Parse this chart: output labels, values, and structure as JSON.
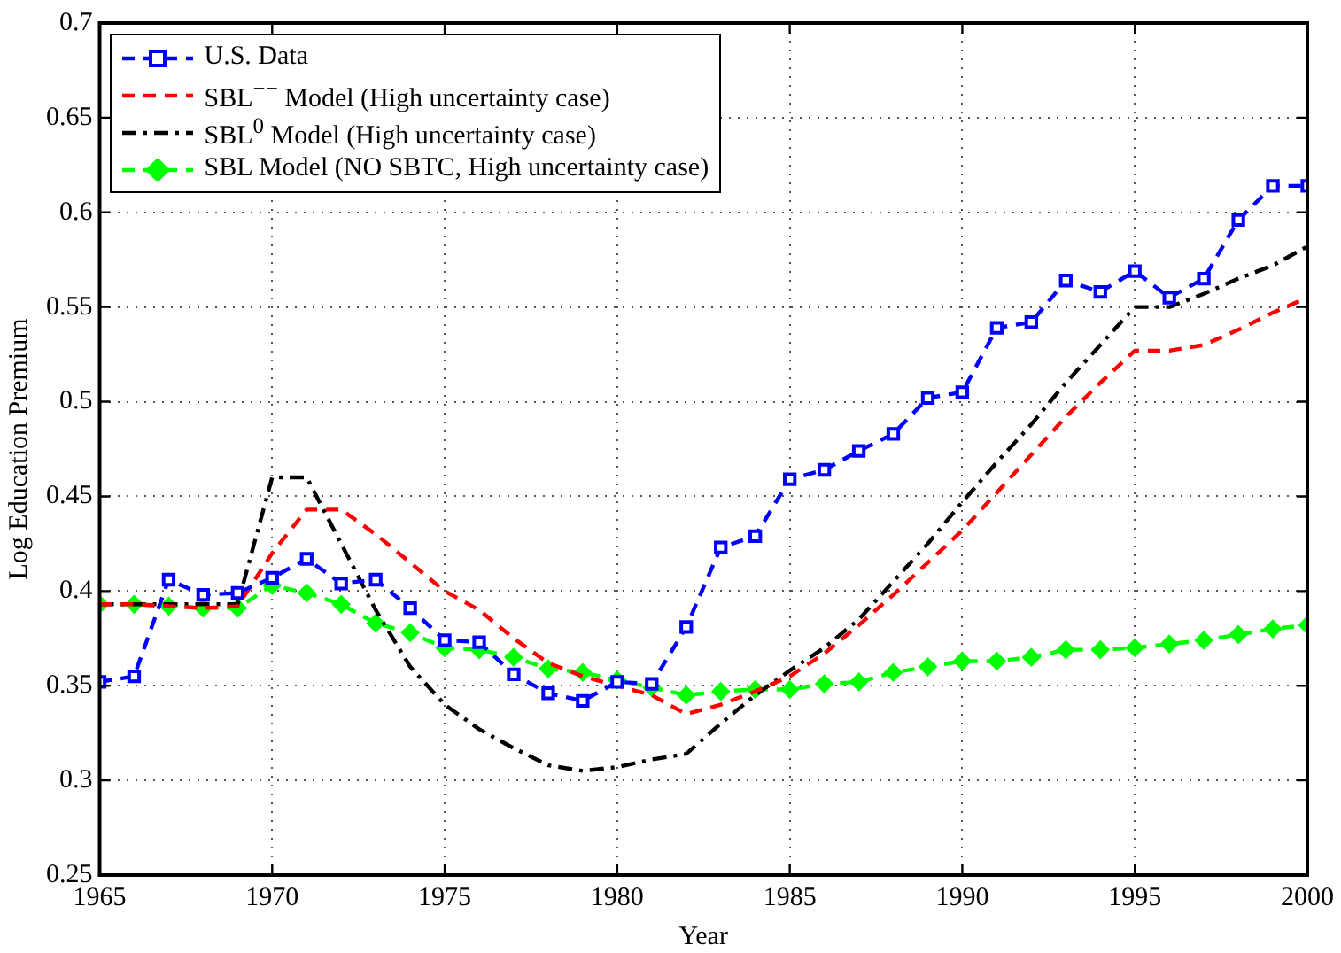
{
  "chart_data": {
    "type": "line",
    "xlabel": "Year",
    "ylabel": "Log Education Premium",
    "x": [
      1965,
      1966,
      1967,
      1968,
      1969,
      1970,
      1971,
      1972,
      1973,
      1974,
      1975,
      1976,
      1977,
      1978,
      1979,
      1980,
      1981,
      1982,
      1983,
      1984,
      1985,
      1986,
      1987,
      1988,
      1989,
      1990,
      1991,
      1992,
      1993,
      1994,
      1995,
      1996,
      1997,
      1998,
      1999,
      2000
    ],
    "xlim": [
      1965,
      2000
    ],
    "xticks": [
      1965,
      1970,
      1975,
      1980,
      1985,
      1990,
      1995,
      2000
    ],
    "ylim": [
      0.25,
      0.7
    ],
    "yticks": [
      0.25,
      0.3,
      0.35,
      0.4,
      0.45,
      0.5,
      0.55,
      0.6,
      0.65,
      0.7
    ],
    "grid": true,
    "legend": "top left",
    "series": [
      {
        "name": "U.S. Data",
        "color": "#0000ff",
        "marker": "square",
        "line_style": "dashed",
        "values": [
          0.352,
          0.355,
          0.406,
          0.398,
          0.399,
          0.407,
          0.417,
          0.404,
          0.406,
          0.391,
          0.374,
          0.373,
          0.356,
          0.346,
          0.342,
          0.352,
          0.351,
          0.381,
          0.423,
          0.429,
          0.459,
          0.464,
          0.474,
          0.483,
          0.502,
          0.505,
          0.539,
          0.542,
          0.564,
          0.558,
          0.569,
          0.555,
          0.565,
          0.596,
          0.614,
          0.614
        ]
      },
      {
        "name": "SBL$^{−−}$ Model (High uncertainty case)",
        "color": "#ff0000",
        "marker": "none",
        "line_style": "dashed",
        "values": [
          0.393,
          0.393,
          0.392,
          0.391,
          0.392,
          0.42,
          0.443,
          0.443,
          0.43,
          0.415,
          0.4,
          0.39,
          0.375,
          0.362,
          0.355,
          0.35,
          0.345,
          0.335,
          0.34,
          0.347,
          0.355,
          0.367,
          0.382,
          0.398,
          0.415,
          0.432,
          0.452,
          0.472,
          0.492,
          0.51,
          0.527,
          0.527,
          0.53,
          0.538,
          0.547,
          0.555
        ]
      },
      {
        "name": "SBL$^{0}$ Model (High uncertainty case)",
        "color": "#000000",
        "marker": "none",
        "line_style": "dashdot",
        "values": [
          0.393,
          0.393,
          0.393,
          0.393,
          0.393,
          0.46,
          0.46,
          0.425,
          0.39,
          0.36,
          0.34,
          0.327,
          0.317,
          0.308,
          0.305,
          0.307,
          0.311,
          0.314,
          0.33,
          0.345,
          0.358,
          0.37,
          0.385,
          0.405,
          0.425,
          0.447,
          0.468,
          0.488,
          0.51,
          0.53,
          0.55,
          0.55,
          0.557,
          0.565,
          0.572,
          0.582
        ]
      },
      {
        "name": "SBL Model (NO SBTC, High uncertainty case)",
        "color": "#00ff00",
        "marker": "diamond",
        "line_style": "dashed",
        "values": [
          0.393,
          0.393,
          0.392,
          0.391,
          0.391,
          0.403,
          0.399,
          0.393,
          0.383,
          0.378,
          0.37,
          0.369,
          0.365,
          0.359,
          0.357,
          0.353,
          0.349,
          0.345,
          0.347,
          0.348,
          0.348,
          0.351,
          0.352,
          0.357,
          0.36,
          0.363,
          0.363,
          0.365,
          0.369,
          0.369,
          0.37,
          0.372,
          0.374,
          0.377,
          0.38,
          0.382
        ]
      }
    ]
  }
}
